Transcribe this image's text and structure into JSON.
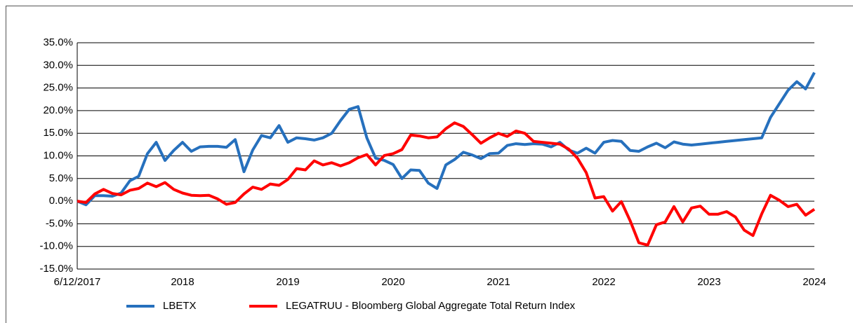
{
  "chart_data": {
    "type": "line",
    "categories": [
      "6/12/2017",
      null,
      null,
      null,
      null,
      null,
      null,
      null,
      null,
      null,
      null,
      null,
      "2018",
      null,
      null,
      null,
      null,
      null,
      null,
      null,
      null,
      null,
      null,
      null,
      "2019",
      null,
      null,
      null,
      null,
      null,
      null,
      null,
      null,
      null,
      null,
      null,
      "2020",
      null,
      null,
      null,
      null,
      null,
      null,
      null,
      null,
      null,
      null,
      null,
      "2021",
      null,
      null,
      null,
      null,
      null,
      null,
      null,
      null,
      null,
      null,
      null,
      "2022",
      null,
      null,
      null,
      null,
      null,
      null,
      null,
      null,
      null,
      null,
      null,
      "2023",
      null,
      null,
      null,
      null,
      null,
      null,
      null,
      null,
      null,
      null,
      null,
      "2024"
    ],
    "series": [
      {
        "name": "LBETX",
        "color": "#2670bd",
        "values": [
          0,
          -0.8,
          1.2,
          1.2,
          1.1,
          1.8,
          4.5,
          5.5,
          10.5,
          13,
          9,
          11.2,
          13,
          11,
          12,
          12.1,
          12.1,
          11.9,
          13.6,
          6.5,
          11.3,
          14.5,
          14,
          16.7,
          13,
          14,
          13.8,
          13.5,
          14,
          15,
          17.8,
          20.3,
          20.9,
          14,
          9.5,
          9,
          8.1,
          5,
          6.9,
          6.8,
          4,
          2.8,
          8,
          9.2,
          10.8,
          10.2,
          9.4,
          10.5,
          10.6,
          12.3,
          12.7,
          12.5,
          12.7,
          12.6,
          12,
          13,
          11.3,
          10.6,
          11.7,
          10.6,
          13,
          13.4,
          13.2,
          11.2,
          11,
          12,
          12.8,
          11.8,
          13.1,
          12.6,
          12.4,
          12.6,
          12.8,
          13,
          13.2,
          13.4,
          13.6,
          13.8,
          14,
          18.5,
          21.5,
          24.5,
          26.4,
          24.8,
          28.4
        ]
      },
      {
        "name": "LEGATRUU - Bloomberg Global Aggregate Total Return Index",
        "color": "#ff0000",
        "values": [
          0,
          -0.3,
          1.6,
          2.6,
          1.7,
          1.4,
          2.4,
          2.8,
          4,
          3.2,
          4.1,
          2.6,
          1.8,
          1.3,
          1.2,
          1.3,
          0.5,
          -0.7,
          -0.3,
          1.6,
          3.1,
          2.6,
          3.8,
          3.5,
          4.8,
          7.2,
          6.9,
          8.9,
          8,
          8.5,
          7.8,
          8.5,
          9.6,
          10.3,
          8,
          10.1,
          10.5,
          11.4,
          14.6,
          14.4,
          14,
          14.2,
          16,
          17.3,
          16.5,
          14.7,
          12.8,
          14,
          15,
          14.3,
          15.5,
          15,
          13.2,
          13,
          12.8,
          12.6,
          11.5,
          9.5,
          6.3,
          0.7,
          1,
          -2.2,
          -0.1,
          -4.3,
          -9.2,
          -9.7,
          -5.2,
          -4.6,
          -1.2,
          -4.6,
          -1.5,
          -1.1,
          -2.9,
          -2.9,
          -2.3,
          -3.5,
          -6.4,
          -7.6,
          -2.8,
          1.3,
          0.2,
          -1.2,
          -0.7,
          -3.1,
          -1.8
        ]
      }
    ],
    "ylim": [
      -15,
      35
    ],
    "yticks": [
      {
        "value": -15,
        "label": "-15.0%"
      },
      {
        "value": -10,
        "label": "-10.0%"
      },
      {
        "value": -5,
        "label": "-5.0%"
      },
      {
        "value": 0,
        "label": "0.0%"
      },
      {
        "value": 5,
        "label": "5.0%"
      },
      {
        "value": 10,
        "label": "10.0%"
      },
      {
        "value": 15,
        "label": "15.0%"
      },
      {
        "value": 20,
        "label": "20.0%"
      },
      {
        "value": 25,
        "label": "25.0%"
      },
      {
        "value": 30,
        "label": "30.0%"
      },
      {
        "value": 35,
        "label": "35.0%"
      }
    ],
    "grid": true,
    "legend": "bottom"
  }
}
